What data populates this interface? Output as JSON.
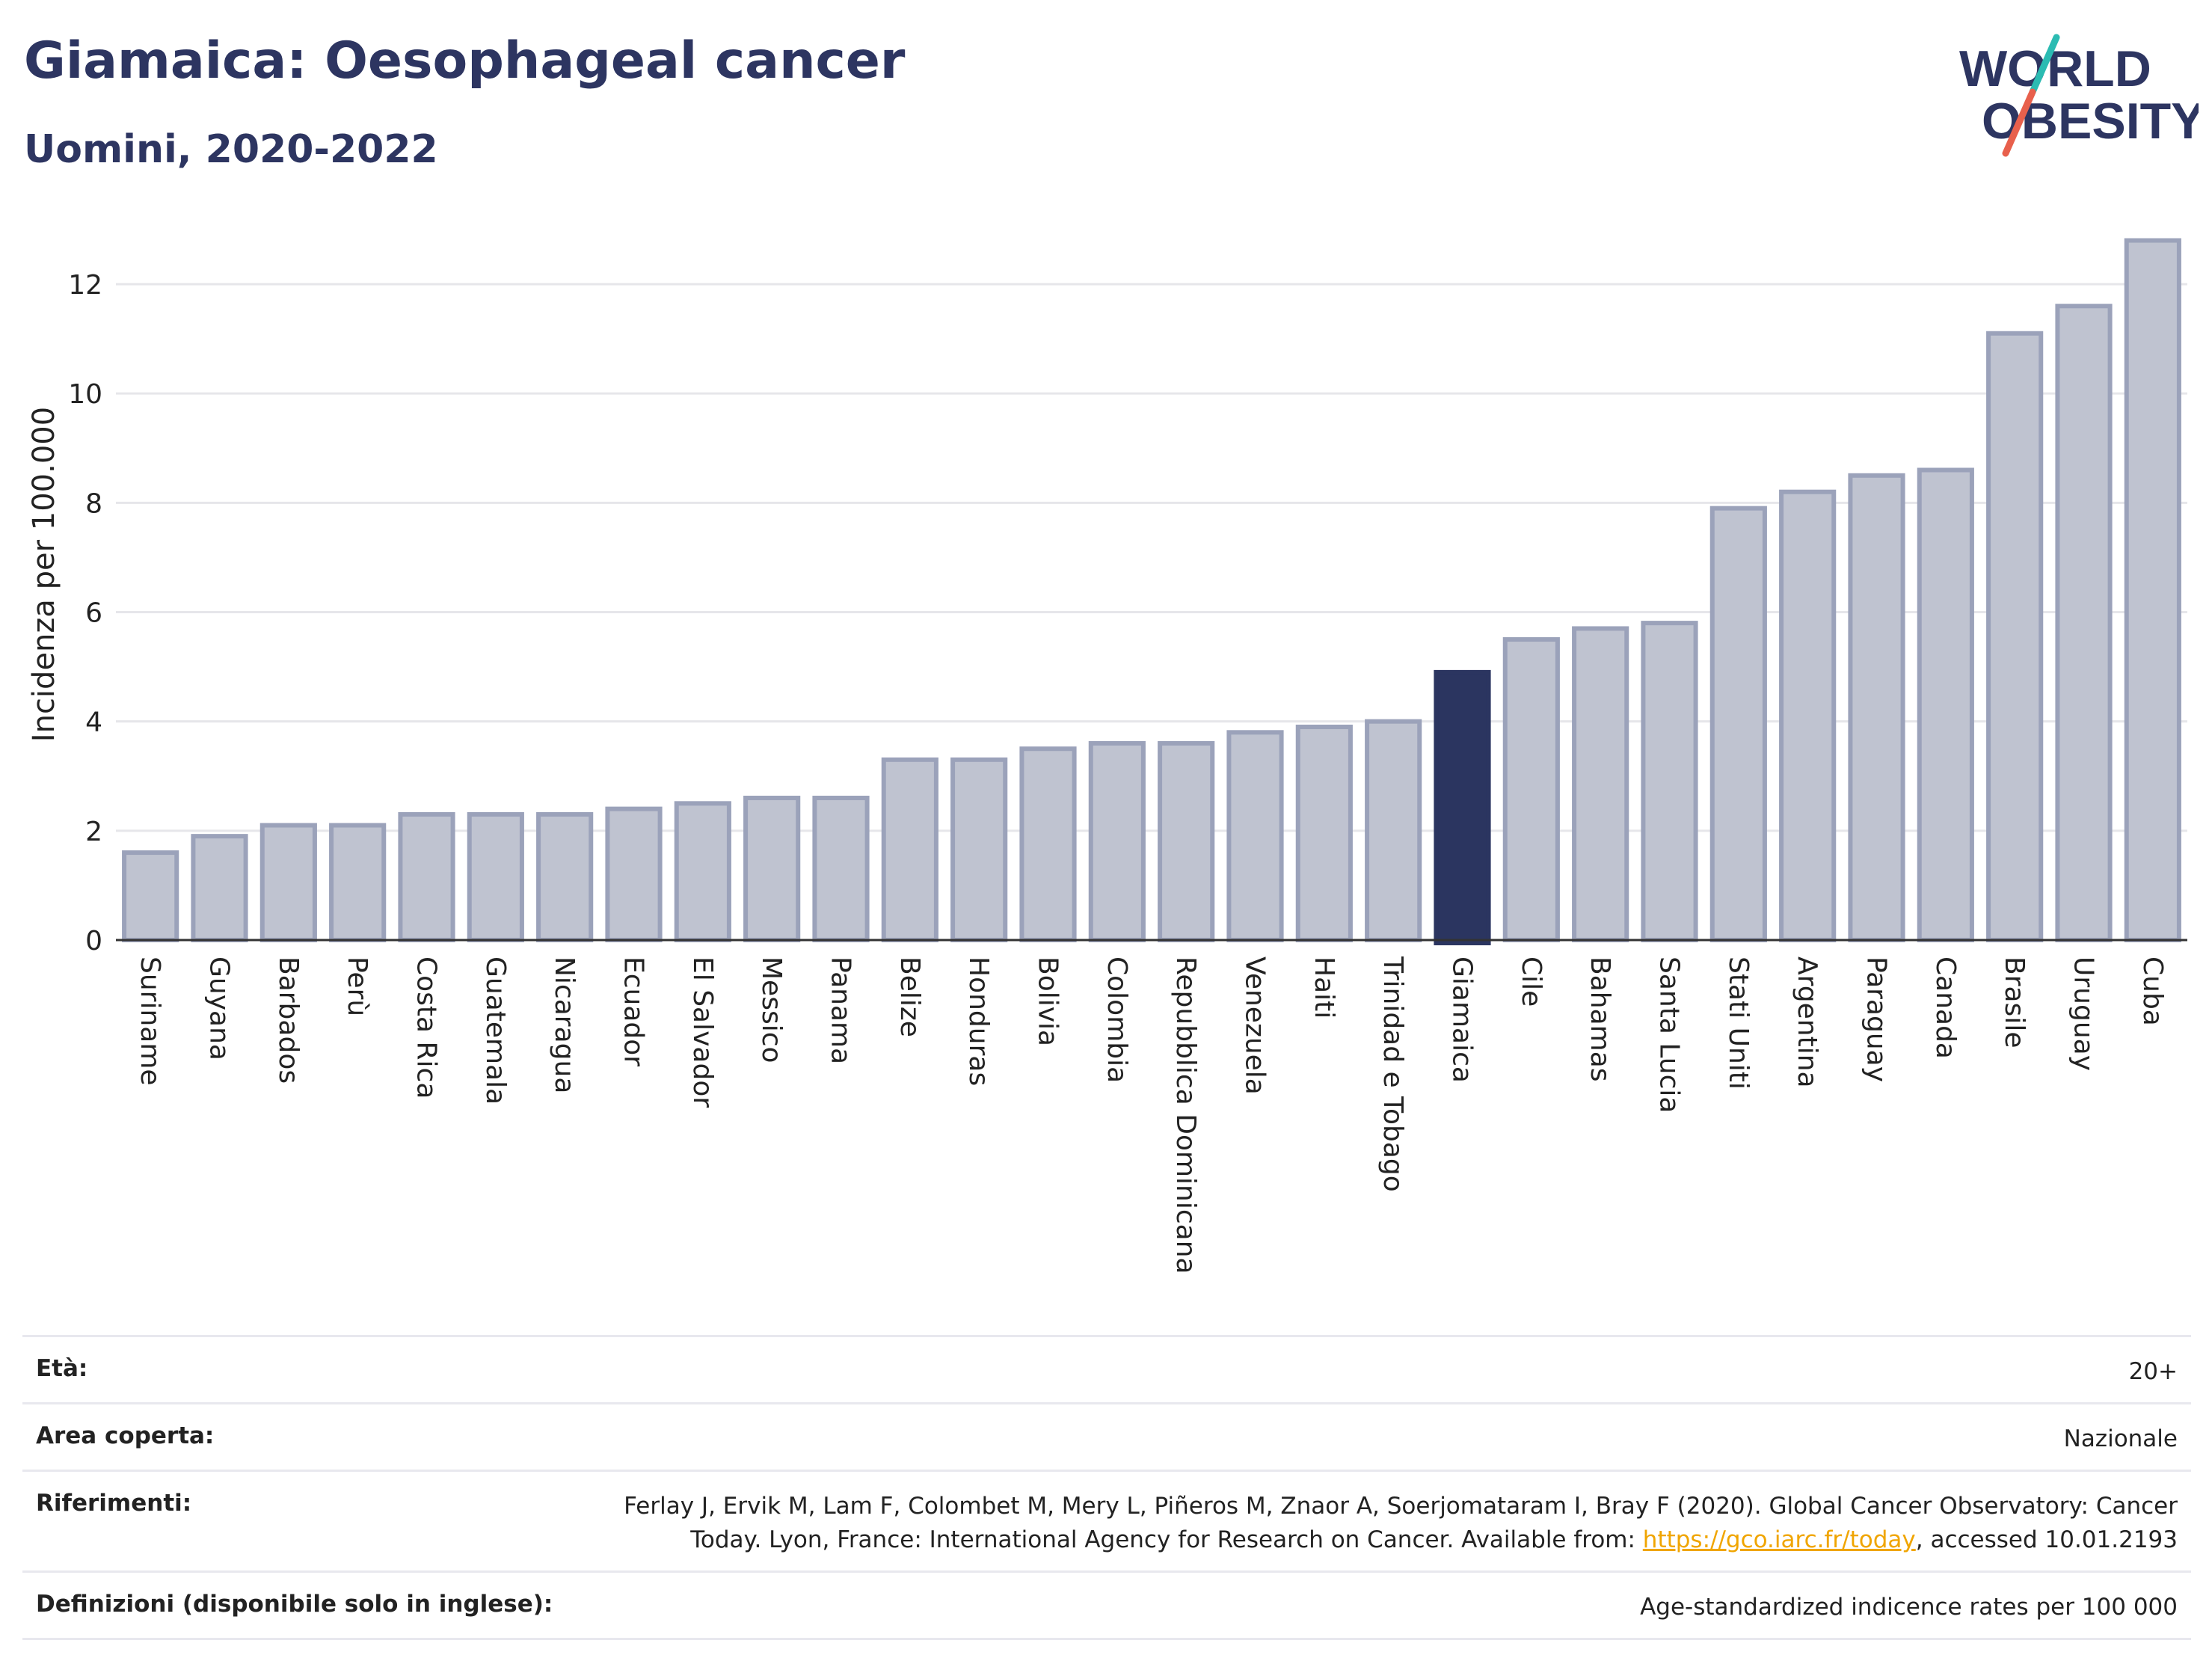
{
  "header": {
    "title": "Giamaica: Oesophageal cancer",
    "subtitle": "Uomini, 2020-2022"
  },
  "logo": {
    "line1": "WORLD",
    "line2": "OBESITY",
    "colors": {
      "text": "#2d3561",
      "slash_teal": "#2bbbb2",
      "slash_red": "#e8604c"
    }
  },
  "chart_data": {
    "type": "bar",
    "title": "Giamaica: Oesophageal cancer",
    "subtitle": "Uomini, 2020-2022",
    "xlabel": "",
    "ylabel": "Incidenza per 100.000",
    "ylim": [
      0,
      13
    ],
    "yticks": [
      0,
      2,
      4,
      6,
      8,
      10,
      12
    ],
    "grid": true,
    "highlight": "Giamaica",
    "colors": {
      "bar": "#bfc3d0",
      "bar_edge": "#9ba2ba",
      "highlight": "#2b3560"
    },
    "categories": [
      "Suriname",
      "Guyana",
      "Barbados",
      "Perù",
      "Costa Rica",
      "Guatemala",
      "Nicaragua",
      "Ecuador",
      "El Salvador",
      "Messico",
      "Panama",
      "Belize",
      "Honduras",
      "Bolivia",
      "Colombia",
      "Repubblica Dominicana",
      "Venezuela",
      "Haiti",
      "Trinidad e Tobago",
      "Giamaica",
      "Cile",
      "Bahamas",
      "Santa Lucia",
      "Stati Uniti",
      "Argentina",
      "Paraguay",
      "Canada",
      "Brasile",
      "Uruguay",
      "Cuba"
    ],
    "values": [
      1.6,
      1.9,
      2.1,
      2.1,
      2.3,
      2.3,
      2.3,
      2.4,
      2.5,
      2.6,
      2.6,
      3.3,
      3.3,
      3.5,
      3.6,
      3.6,
      3.8,
      3.9,
      4.0,
      4.9,
      5.5,
      5.7,
      5.8,
      7.9,
      8.2,
      8.5,
      8.6,
      11.1,
      11.6,
      12.8
    ]
  },
  "meta": {
    "age_label": "Età:",
    "age_value": "20+",
    "area_label": "Area coperta:",
    "area_value": "Nazionale",
    "refs_label": "Riferimenti:",
    "refs_value_1": "Ferlay J, Ervik M, Lam F, Colombet M, Mery L, Piñeros M, Znaor A, Soerjomataram I, Bray F (2020). Global Cancer Observatory: Cancer Today. Lyon, France: International Agency for Research on Cancer. Available from: ",
    "refs_link": "https://gco.iarc.fr/today",
    "refs_value_2": ", accessed 10.01.2193",
    "defs_label": "Definizioni (disponibile solo in inglese):",
    "defs_value": "Age-standardized indicence rates per 100 000"
  }
}
